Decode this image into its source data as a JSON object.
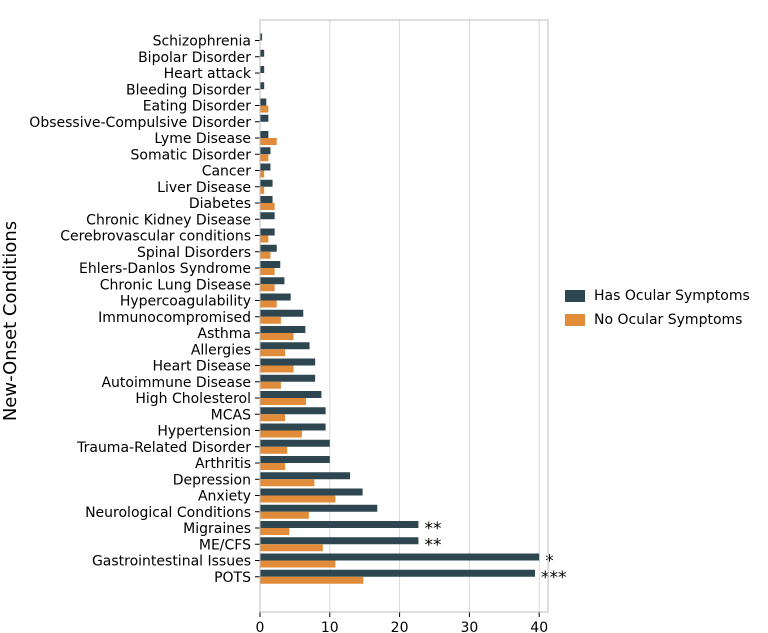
{
  "chart_data": {
    "type": "bar",
    "orientation": "horizontal",
    "ylabel": "New-Onset Conditions",
    "xlabel": "",
    "xlim": [
      0,
      41
    ],
    "xticks": [
      0,
      10,
      20,
      30,
      40
    ],
    "grid": "vertical",
    "legend_position": "right",
    "categories": [
      "Schizophrenia",
      "Bipolar Disorder",
      "Heart attack",
      "Bleeding Disorder",
      "Eating Disorder",
      "Obsessive-Compulsive Disorder",
      "Lyme Disease",
      "Somatic Disorder",
      "Cancer",
      "Liver Disease",
      "Diabetes",
      "Chronic Kidney Disease",
      "Cerebrovascular conditions",
      "Spinal Disorders",
      "Ehlers-Danlos Syndrome",
      "Chronic Lung Disease",
      "Hypercoagulability",
      "Immunocompromised",
      "Asthma",
      "Allergies",
      "Heart Disease",
      "Autoimmune Disease",
      "High Cholesterol",
      "MCAS",
      "Hypertension",
      "Trauma-Related Disorder",
      "Arthritis",
      "Depression",
      "Anxiety",
      "Neurological Conditions",
      "Migraines",
      "ME/CFS",
      "Gastrointestinal Issues",
      "POTS"
    ],
    "series": [
      {
        "name": "Has Ocular Symptoms",
        "color": "#2e4650",
        "values": [
          0.3,
          0.6,
          0.6,
          0.6,
          0.9,
          1.2,
          1.2,
          1.5,
          1.5,
          1.8,
          1.8,
          2.1,
          2.1,
          2.4,
          2.9,
          3.5,
          4.4,
          6.2,
          6.5,
          7.1,
          7.9,
          7.9,
          8.8,
          9.4,
          9.4,
          10.0,
          10.0,
          12.9,
          14.7,
          16.8,
          22.7,
          22.7,
          40.0,
          39.4
        ]
      },
      {
        "name": "No Ocular Symptoms",
        "color": "#e08c3a",
        "values": [
          0,
          0,
          0,
          0,
          1.2,
          0,
          2.4,
          1.2,
          0.6,
          0.6,
          2.1,
          0,
          1.2,
          1.5,
          2.1,
          2.1,
          2.4,
          3.0,
          4.8,
          3.6,
          4.8,
          3.0,
          6.6,
          3.6,
          6.0,
          3.9,
          3.6,
          7.8,
          10.8,
          7.0,
          4.2,
          9.0,
          10.8,
          14.8
        ]
      }
    ],
    "annotations": [
      {
        "category": "Migraines",
        "text": "**"
      },
      {
        "category": "ME/CFS",
        "text": "**"
      },
      {
        "category": "Gastrointestinal Issues",
        "text": "*"
      },
      {
        "category": "POTS",
        "text": "***"
      }
    ]
  }
}
